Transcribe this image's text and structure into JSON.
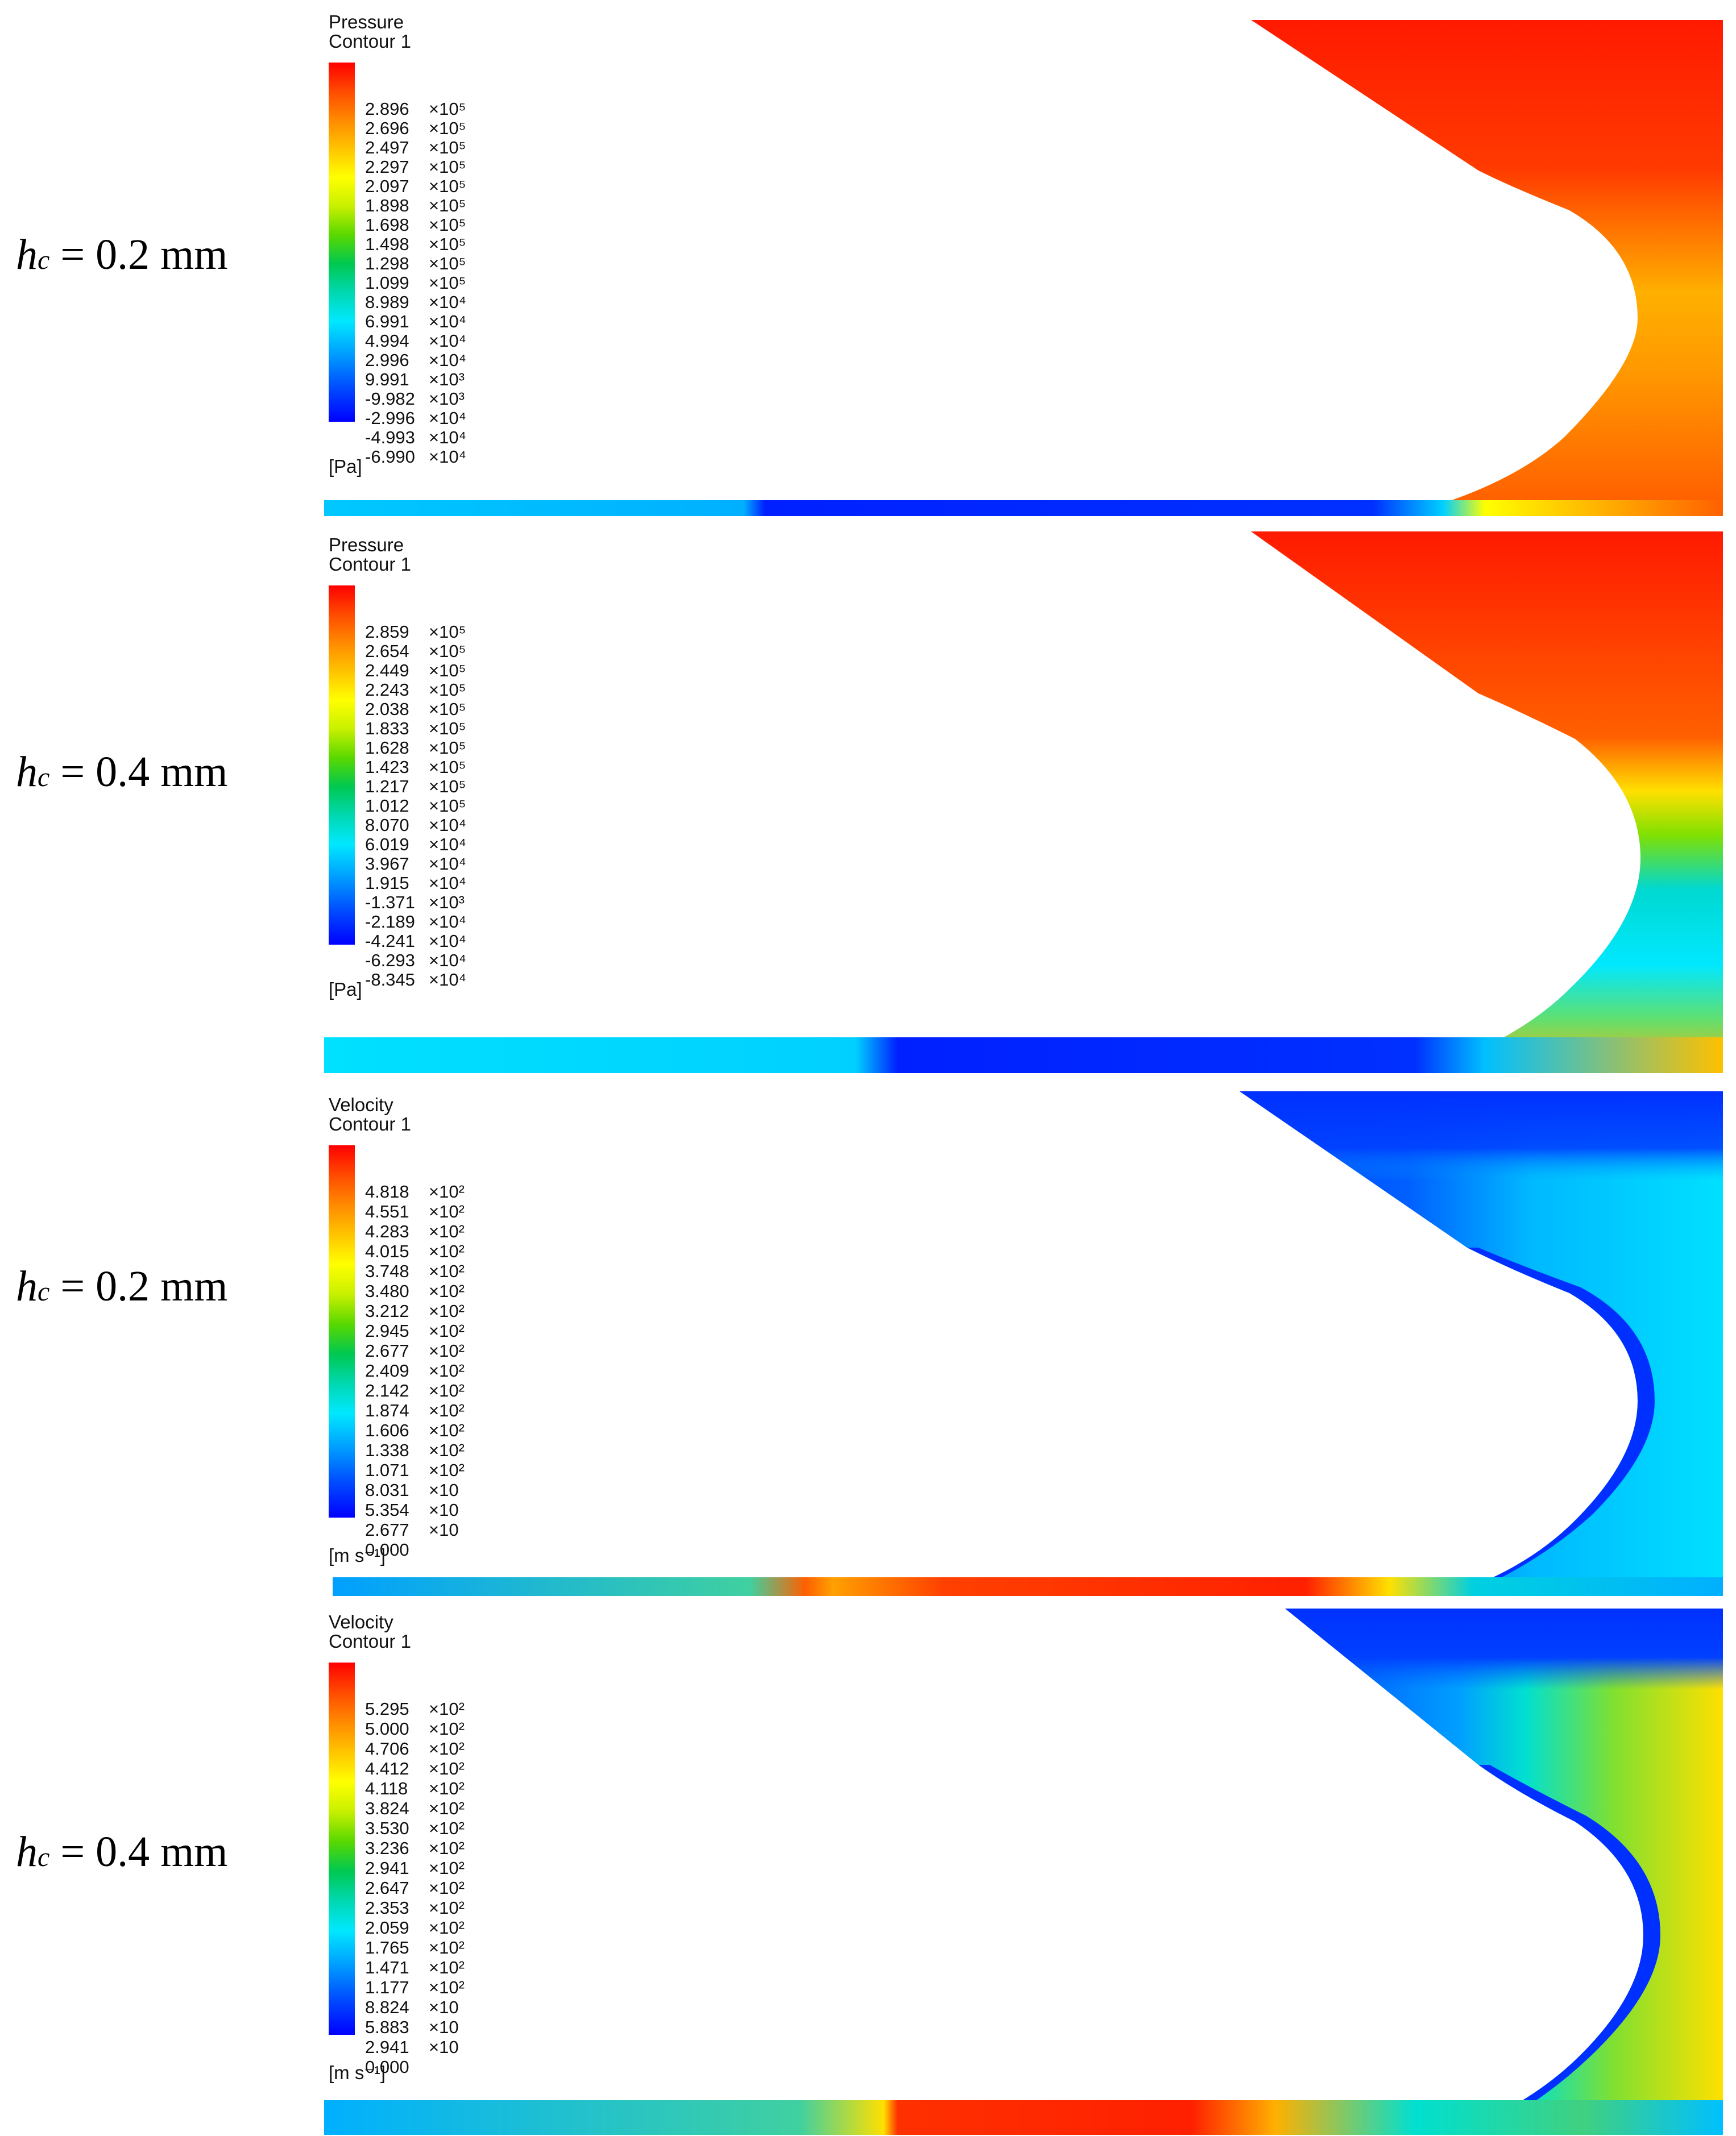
{
  "panels": [
    {
      "label_var": "h",
      "label_sub": "c",
      "label_value": "= 0.2 mm",
      "legend": {
        "quantity": "Pressure",
        "contour": "Contour 1",
        "unit": "[Pa]",
        "ticks": [
          {
            "m": "2.896",
            "e": "×10⁵"
          },
          {
            "m": "2.696",
            "e": "×10⁵"
          },
          {
            "m": "2.497",
            "e": "×10⁵"
          },
          {
            "m": "2.297",
            "e": "×10⁵"
          },
          {
            "m": "2.097",
            "e": "×10⁵"
          },
          {
            "m": "1.898",
            "e": "×10⁵"
          },
          {
            "m": "1.698",
            "e": "×10⁵"
          },
          {
            "m": "1.498",
            "e": "×10⁵"
          },
          {
            "m": "1.298",
            "e": "×10⁵"
          },
          {
            "m": "1.099",
            "e": "×10⁵"
          },
          {
            "m": "8.989",
            "e": "×10⁴"
          },
          {
            "m": "6.991",
            "e": "×10⁴"
          },
          {
            "m": "4.994",
            "e": "×10⁴"
          },
          {
            "m": "2.996",
            "e": "×10⁴"
          },
          {
            "m": "9.991",
            "e": "×10³"
          },
          {
            "m": "-9.982",
            "e": "×10³"
          },
          {
            "m": "-2.996",
            "e": "×10⁴"
          },
          {
            "m": "-4.993",
            "e": "×10⁴"
          },
          {
            "m": "-6.990",
            "e": "×10⁴"
          }
        ]
      }
    },
    {
      "label_var": "h",
      "label_sub": "c",
      "label_value": "= 0.4 mm",
      "legend": {
        "quantity": "Pressure",
        "contour": "Contour 1",
        "unit": "[Pa]",
        "ticks": [
          {
            "m": "2.859",
            "e": "×10⁵"
          },
          {
            "m": "2.654",
            "e": "×10⁵"
          },
          {
            "m": "2.449",
            "e": "×10⁵"
          },
          {
            "m": "2.243",
            "e": "×10⁵"
          },
          {
            "m": "2.038",
            "e": "×10⁵"
          },
          {
            "m": "1.833",
            "e": "×10⁵"
          },
          {
            "m": "1.628",
            "e": "×10⁵"
          },
          {
            "m": "1.423",
            "e": "×10⁵"
          },
          {
            "m": "1.217",
            "e": "×10⁵"
          },
          {
            "m": "1.012",
            "e": "×10⁵"
          },
          {
            "m": "8.070",
            "e": "×10⁴"
          },
          {
            "m": "6.019",
            "e": "×10⁴"
          },
          {
            "m": "3.967",
            "e": "×10⁴"
          },
          {
            "m": "1.915",
            "e": "×10⁴"
          },
          {
            "m": "-1.371",
            "e": "×10³"
          },
          {
            "m": "-2.189",
            "e": "×10⁴"
          },
          {
            "m": "-4.241",
            "e": "×10⁴"
          },
          {
            "m": "-6.293",
            "e": "×10⁴"
          },
          {
            "m": "-8.345",
            "e": "×10⁴"
          }
        ]
      }
    },
    {
      "label_var": "h",
      "label_sub": "c",
      "label_value": "= 0.2 mm",
      "legend": {
        "quantity": "Velocity",
        "contour": "Contour 1",
        "unit": "[m s⁻¹]",
        "ticks": [
          {
            "m": "4.818",
            "e": "×10²"
          },
          {
            "m": "4.551",
            "e": "×10²"
          },
          {
            "m": "4.283",
            "e": "×10²"
          },
          {
            "m": "4.015",
            "e": "×10²"
          },
          {
            "m": "3.748",
            "e": "×10²"
          },
          {
            "m": "3.480",
            "e": "×10²"
          },
          {
            "m": "3.212",
            "e": "×10²"
          },
          {
            "m": "2.945",
            "e": "×10²"
          },
          {
            "m": "2.677",
            "e": "×10²"
          },
          {
            "m": "2.409",
            "e": "×10²"
          },
          {
            "m": "2.142",
            "e": "×10²"
          },
          {
            "m": "1.874",
            "e": "×10²"
          },
          {
            "m": "1.606",
            "e": "×10²"
          },
          {
            "m": "1.338",
            "e": "×10²"
          },
          {
            "m": "1.071",
            "e": "×10²"
          },
          {
            "m": "8.031",
            "e": "×10"
          },
          {
            "m": "5.354",
            "e": "×10"
          },
          {
            "m": "2.677",
            "e": "×10"
          },
          {
            "m": "0.000",
            "e": ""
          }
        ]
      }
    },
    {
      "label_var": "h",
      "label_sub": "c",
      "label_value": "= 0.4 mm",
      "legend": {
        "quantity": "Velocity",
        "contour": "Contour 1",
        "unit": "[m s⁻¹]",
        "ticks": [
          {
            "m": "5.295",
            "e": "×10²"
          },
          {
            "m": "5.000",
            "e": "×10²"
          },
          {
            "m": "4.706",
            "e": "×10²"
          },
          {
            "m": "4.412",
            "e": "×10²"
          },
          {
            "m": "4.118",
            "e": "×10²"
          },
          {
            "m": "3.824",
            "e": "×10²"
          },
          {
            "m": "3.530",
            "e": "×10²"
          },
          {
            "m": "3.236",
            "e": "×10²"
          },
          {
            "m": "2.941",
            "e": "×10²"
          },
          {
            "m": "2.647",
            "e": "×10²"
          },
          {
            "m": "2.353",
            "e": "×10²"
          },
          {
            "m": "2.059",
            "e": "×10²"
          },
          {
            "m": "1.765",
            "e": "×10²"
          },
          {
            "m": "1.471",
            "e": "×10²"
          },
          {
            "m": "1.177",
            "e": "×10²"
          },
          {
            "m": "8.824",
            "e": "×10"
          },
          {
            "m": "5.883",
            "e": "×10"
          },
          {
            "m": "2.941",
            "e": "×10"
          },
          {
            "m": "0.000",
            "e": ""
          }
        ]
      }
    }
  ]
}
